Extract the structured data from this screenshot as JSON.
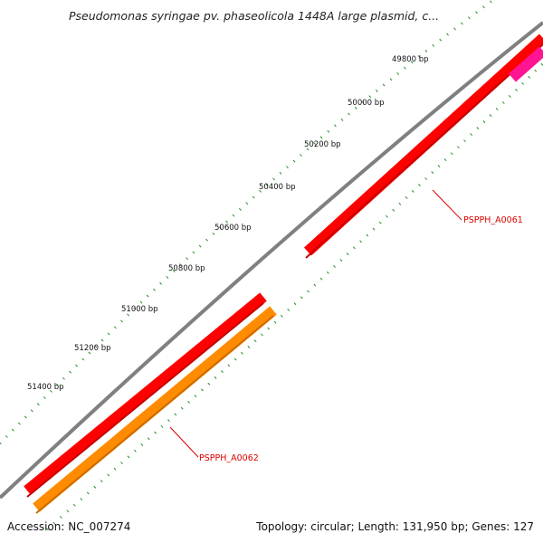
{
  "title": "Pseudomonas syringae pv. phaseolicola 1448A large plasmid, c...",
  "footer": {
    "accession": "Accession: NC_007274",
    "summary": "Topology: circular; Length: 131,950 bp; Genes: 127"
  },
  "ticks": [
    {
      "label": "49800 bp"
    },
    {
      "label": "50000 bp"
    },
    {
      "label": "50200 bp"
    },
    {
      "label": "50400 bp"
    },
    {
      "label": "50600 bp"
    },
    {
      "label": "50800 bp"
    },
    {
      "label": "51000 bp"
    },
    {
      "label": "51200 bp"
    },
    {
      "label": "51400 bp"
    }
  ],
  "genes": [
    {
      "name": "PSPPH_A0061",
      "color": "#ff0000"
    },
    {
      "name": "PSPPH_A0062",
      "color": "#ff0000"
    }
  ],
  "features": [
    {
      "type": "orange-feature",
      "color": "#ff8c00"
    },
    {
      "type": "pink-feature",
      "color": "#ff1493"
    }
  ],
  "colors": {
    "backbone": "#808080",
    "tick": "#228b22",
    "label_line": "#dd0000"
  }
}
